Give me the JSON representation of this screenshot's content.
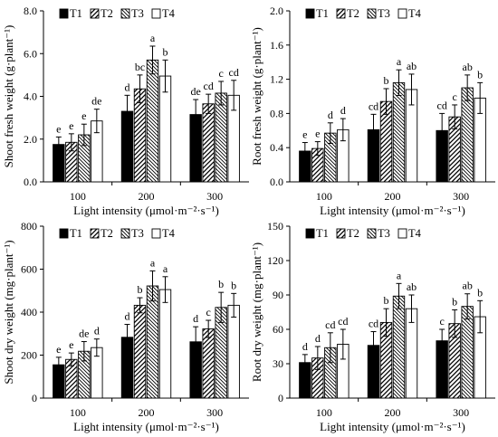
{
  "chart_data": [
    {
      "type": "bar",
      "id": "shoot-fresh",
      "categories": [
        "100",
        "200",
        "300"
      ],
      "xlabel": "Light intensity (μmol·m⁻²·s⁻¹)",
      "ylabel": "Shoot fresh weight (g·plant⁻¹)",
      "ylim": [
        0,
        8
      ],
      "yticks": [
        "0.0",
        "2.0",
        "4.0",
        "6.0",
        "8.0"
      ],
      "legend": [
        "T1",
        "T2",
        "T3",
        "T4"
      ],
      "legend_position": "top-left",
      "series": [
        {
          "name": "T1",
          "values": [
            1.75,
            3.3,
            3.15
          ],
          "errors": [
            0.35,
            0.75,
            0.7
          ],
          "labels": [
            "e",
            "d",
            "de"
          ]
        },
        {
          "name": "T2",
          "values": [
            1.85,
            4.35,
            3.65
          ],
          "errors": [
            0.4,
            0.65,
            0.45
          ],
          "labels": [
            "e",
            "bc",
            "cd"
          ]
        },
        {
          "name": "T3",
          "values": [
            2.2,
            5.7,
            4.15
          ],
          "errors": [
            0.5,
            0.65,
            0.55
          ],
          "labels": [
            "e",
            "a",
            "c"
          ]
        },
        {
          "name": "T4",
          "values": [
            2.85,
            4.95,
            4.05
          ],
          "errors": [
            0.55,
            0.75,
            0.7
          ],
          "labels": [
            "de",
            "b",
            "cd"
          ]
        }
      ]
    },
    {
      "type": "bar",
      "id": "root-fresh",
      "categories": [
        "100",
        "200",
        "300"
      ],
      "xlabel": "Light intensity (μmol·m⁻²·s⁻¹)",
      "ylabel": "Root fresh weight (g·plant⁻¹)",
      "ylim": [
        0,
        2
      ],
      "yticks": [
        "0.0",
        "0.4",
        "0.8",
        "1.2",
        "1.6",
        "2.0"
      ],
      "legend": [
        "T1",
        "T2",
        "T3",
        "T4"
      ],
      "legend_position": "top-left",
      "series": [
        {
          "name": "T1",
          "values": [
            0.36,
            0.61,
            0.6
          ],
          "errors": [
            0.1,
            0.18,
            0.2
          ],
          "labels": [
            "e",
            "cd",
            "cd"
          ]
        },
        {
          "name": "T2",
          "values": [
            0.39,
            0.94,
            0.76
          ],
          "errors": [
            0.08,
            0.15,
            0.14
          ],
          "labels": [
            "e",
            "b",
            "c"
          ]
        },
        {
          "name": "T3",
          "values": [
            0.57,
            1.16,
            1.1
          ],
          "errors": [
            0.12,
            0.15,
            0.15
          ],
          "labels": [
            "d",
            "a",
            "ab"
          ]
        },
        {
          "name": "T4",
          "values": [
            0.61,
            1.08,
            0.98
          ],
          "errors": [
            0.13,
            0.18,
            0.18
          ],
          "labels": [
            "d",
            "ab",
            "b"
          ]
        }
      ]
    },
    {
      "type": "bar",
      "id": "shoot-dry",
      "categories": [
        "100",
        "200",
        "300"
      ],
      "xlabel": "Light intensity (μmol·m⁻²·s⁻¹)",
      "ylabel": "Shoot dry weight (mg·plant⁻¹)",
      "ylim": [
        0,
        800
      ],
      "yticks": [
        "0",
        "200",
        "400",
        "600",
        "800"
      ],
      "legend": [
        "T1",
        "T2",
        "T3",
        "T4"
      ],
      "legend_position": "top-left",
      "series": [
        {
          "name": "T1",
          "values": [
            155,
            283,
            262
          ],
          "errors": [
            35,
            60,
            70
          ],
          "labels": [
            "e",
            "d",
            "d"
          ]
        },
        {
          "name": "T2",
          "values": [
            180,
            432,
            322
          ],
          "errors": [
            30,
            35,
            40
          ],
          "labels": [
            "e",
            "b",
            "c"
          ]
        },
        {
          "name": "T3",
          "values": [
            218,
            522,
            422
          ],
          "errors": [
            45,
            70,
            70
          ],
          "labels": [
            "de",
            "a",
            "b"
          ]
        },
        {
          "name": "T4",
          "values": [
            235,
            505,
            432
          ],
          "errors": [
            40,
            60,
            55
          ],
          "labels": [
            "d",
            "a",
            "b"
          ]
        }
      ]
    },
    {
      "type": "bar",
      "id": "root-dry",
      "categories": [
        "100",
        "200",
        "300"
      ],
      "xlabel": "Light intensity (μmol·m⁻²·s⁻¹)",
      "ylabel": "Root dry weight (mg·plant⁻¹)",
      "ylim": [
        0,
        150
      ],
      "yticks": [
        "0",
        "30",
        "60",
        "90",
        "120",
        "150"
      ],
      "legend": [
        "T1",
        "T2",
        "T3",
        "T4"
      ],
      "legend_position": "top-left",
      "series": [
        {
          "name": "T1",
          "values": [
            31,
            46,
            50
          ],
          "errors": [
            7,
            12,
            10
          ],
          "labels": [
            "d",
            "cd",
            "c"
          ]
        },
        {
          "name": "T2",
          "values": [
            35,
            66,
            65
          ],
          "errors": [
            10,
            12,
            12
          ],
          "labels": [
            "d",
            "b",
            "b"
          ]
        },
        {
          "name": "T3",
          "values": [
            44,
            89,
            80
          ],
          "errors": [
            13,
            11,
            11
          ],
          "labels": [
            "cd",
            "a",
            "ab"
          ]
        },
        {
          "name": "T4",
          "values": [
            47,
            78,
            71
          ],
          "errors": [
            13,
            12,
            14
          ],
          "labels": [
            "cd",
            "ab",
            "b"
          ]
        }
      ]
    }
  ]
}
